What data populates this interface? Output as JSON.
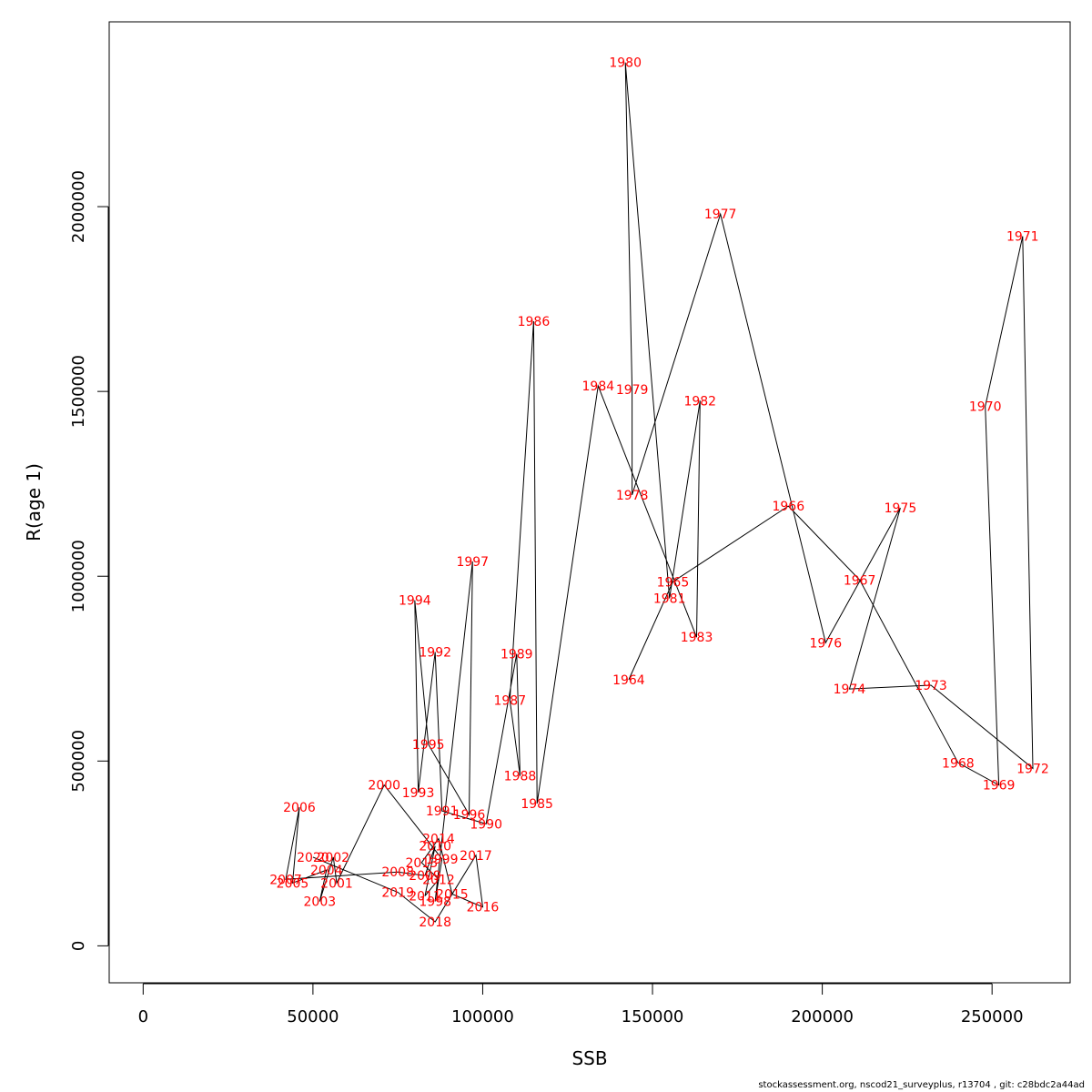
{
  "chart_data": {
    "type": "scatter",
    "xlabel": "SSB",
    "ylabel": "R(age 1)",
    "xlim": [
      -10000,
      273000
    ],
    "ylim": [
      -100000,
      2500000
    ],
    "xticks": [
      0,
      50000,
      100000,
      150000,
      200000,
      250000
    ],
    "yticks": [
      0,
      500000,
      1000000,
      1500000,
      2000000
    ],
    "grid": false,
    "colors": {
      "line": "#000000",
      "labels": "#ff0000",
      "frame": "#000000"
    },
    "points": [
      {
        "label": "1964",
        "x": 143000,
        "y": 720000
      },
      {
        "label": "1965",
        "x": 156000,
        "y": 985000
      },
      {
        "label": "1966",
        "x": 190000,
        "y": 1190000
      },
      {
        "label": "1967",
        "x": 211000,
        "y": 990000
      },
      {
        "label": "1968",
        "x": 240000,
        "y": 495000
      },
      {
        "label": "1969",
        "x": 252000,
        "y": 435000
      },
      {
        "label": "1970",
        "x": 248000,
        "y": 1460000
      },
      {
        "label": "1971",
        "x": 259000,
        "y": 1920000
      },
      {
        "label": "1972",
        "x": 262000,
        "y": 480000
      },
      {
        "label": "1973",
        "x": 232000,
        "y": 705000
      },
      {
        "label": "1974",
        "x": 208000,
        "y": 695000
      },
      {
        "label": "1975",
        "x": 223000,
        "y": 1185000
      },
      {
        "label": "1976",
        "x": 201000,
        "y": 820000
      },
      {
        "label": "1977",
        "x": 170000,
        "y": 1980000
      },
      {
        "label": "1978",
        "x": 144000,
        "y": 1220000
      },
      {
        "label": "1979",
        "x": 144000,
        "y": 1505000
      },
      {
        "label": "1980",
        "x": 142000,
        "y": 2390000
      },
      {
        "label": "1981",
        "x": 155000,
        "y": 940000
      },
      {
        "label": "1982",
        "x": 164000,
        "y": 1475000
      },
      {
        "label": "1983",
        "x": 163000,
        "y": 835000
      },
      {
        "label": "1984",
        "x": 134000,
        "y": 1515000
      },
      {
        "label": "1985",
        "x": 116000,
        "y": 385000
      },
      {
        "label": "1986",
        "x": 115000,
        "y": 1690000
      },
      {
        "label": "1987",
        "x": 108000,
        "y": 665000
      },
      {
        "label": "1988",
        "x": 111000,
        "y": 460000
      },
      {
        "label": "1989",
        "x": 110000,
        "y": 790000
      },
      {
        "label": "1990",
        "x": 101000,
        "y": 330000
      },
      {
        "label": "1991",
        "x": 88000,
        "y": 365000
      },
      {
        "label": "1992",
        "x": 86000,
        "y": 795000
      },
      {
        "label": "1993",
        "x": 81000,
        "y": 415000
      },
      {
        "label": "1994",
        "x": 80000,
        "y": 935000
      },
      {
        "label": "1995",
        "x": 84000,
        "y": 545000
      },
      {
        "label": "1996",
        "x": 96000,
        "y": 355000
      },
      {
        "label": "1997",
        "x": 97000,
        "y": 1040000
      },
      {
        "label": "1998",
        "x": 86000,
        "y": 120000
      },
      {
        "label": "1999",
        "x": 88000,
        "y": 235000
      },
      {
        "label": "2000",
        "x": 71000,
        "y": 435000
      },
      {
        "label": "2001",
        "x": 57000,
        "y": 170000
      },
      {
        "label": "2002",
        "x": 56000,
        "y": 240000
      },
      {
        "label": "2003",
        "x": 52000,
        "y": 120000
      },
      {
        "label": "2004",
        "x": 54000,
        "y": 205000
      },
      {
        "label": "2005",
        "x": 44000,
        "y": 170000
      },
      {
        "label": "2006",
        "x": 46000,
        "y": 375000
      },
      {
        "label": "2007",
        "x": 42000,
        "y": 180000
      },
      {
        "label": "2008",
        "x": 75000,
        "y": 200000
      },
      {
        "label": "2009",
        "x": 83000,
        "y": 190000
      },
      {
        "label": "2010",
        "x": 86000,
        "y": 270000
      },
      {
        "label": "2011",
        "x": 83000,
        "y": 135000
      },
      {
        "label": "2012",
        "x": 87000,
        "y": 180000
      },
      {
        "label": "2013",
        "x": 82000,
        "y": 225000
      },
      {
        "label": "2014",
        "x": 87000,
        "y": 290000
      },
      {
        "label": "2015",
        "x": 91000,
        "y": 140000
      },
      {
        "label": "2016",
        "x": 100000,
        "y": 105000
      },
      {
        "label": "2017",
        "x": 98000,
        "y": 245000
      },
      {
        "label": "2018",
        "x": 86000,
        "y": 65000
      },
      {
        "label": "2019",
        "x": 75000,
        "y": 145000
      },
      {
        "label": "2020",
        "x": 50000,
        "y": 240000
      }
    ]
  },
  "footer": {
    "text": "stockassessment.org, nscod21_surveyplus, r13704 , git: c28bdc2a44ad"
  }
}
